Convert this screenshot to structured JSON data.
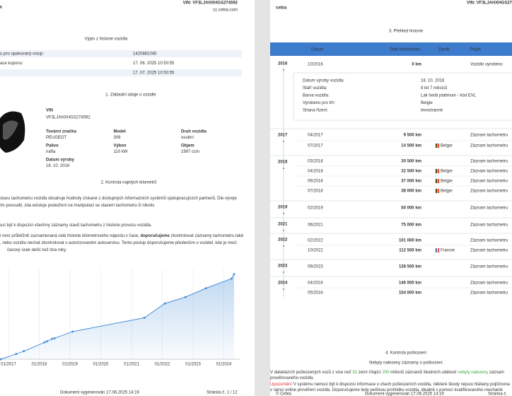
{
  "left_page": {
    "header": {
      "vin": "VIN: VF3LJAHXHGS274592",
      "website": "cz.cebia.com",
      "logo": "bia"
    },
    "title": "Výpis z historie vozidla",
    "summary_rows": [
      {
        "label": "u pro opakovaný vstup:",
        "value": "1420881045"
      },
      {
        "label": "ace kuponu:",
        "value": "17. 06. 2025 10:50:55"
      },
      {
        "value": "17. 07. 2025 10:50:55"
      }
    ],
    "section1": {
      "title": "1. Základní údaje o vozidle",
      "vin_label": "VIN",
      "vin": "VF3LJAHXHGS274592",
      "fields": [
        {
          "label": "Tovární značka",
          "value": "PEUGEOT"
        },
        {
          "label": "Model",
          "value": "308"
        },
        {
          "label": "Druh vozidla",
          "value": "osobní"
        },
        {
          "label": "Palivo",
          "value": "nafta"
        },
        {
          "label": "Výkon",
          "value": "110 kW"
        },
        {
          "label": "Objem",
          "value": "1997 ccm"
        },
        {
          "label": "Datum výroby",
          "value": "18. 10. 2016"
        }
      ]
    },
    "section2": {
      "title": "2. Kontrola najetých kilometrů",
      "lines": [
        [
          {
            "text": "stavu tachometru vozidla obsahuje hodnoty získané z dostupných informačních systémů spolupracujících partnerů. Dle vývoje"
          }
        ],
        [
          {
            "text": "ím posoudit, zda existuje podezření na manipulaci se stavem tachometru či nikoliv."
          }
        ],
        [
          {
            "text": "usí být k dispozici všechny záznamy stavů tachometru z historie provozu vozidla."
          }
        ],
        [
          {
            "text": "i není průběžně zaznamenaná celá historie kilometrového nájezdu v čase, "
          },
          {
            "text": "doporučujeme",
            "bold": true
          },
          {
            "text": " zkontrolovat záznamy tachometru také"
          }
        ],
        [
          {
            "text": ", nebo vozidlo nechat zkontrolovat v autorizovaném autoservisu. Tento postup doporučujeme především u vozidel, kde je mezi"
          }
        ],
        [
          {
            "text": "časový úsek delší než dva roky."
          }
        ]
      ]
    },
    "footer": {
      "generated": "Dokument vygenerován 17.06.2025 14:19",
      "page": "Stránka č. 1 / 12"
    }
  },
  "chart_data": {
    "type": "line",
    "x": [
      "10/2016",
      "04/2017",
      "07/2017",
      "03/2018",
      "04/2018",
      "06/2018",
      "07/2018",
      "02/2019",
      "06/2021",
      "02/2022",
      "10/2022",
      "06/2023",
      "04/2024",
      "05/2024"
    ],
    "values": [
      0,
      9500,
      14500,
      30500,
      32500,
      37000,
      38000,
      50000,
      75000,
      101000,
      112500,
      128500,
      146000,
      154000
    ],
    "xticks": [
      "01/2017",
      "01/2018",
      "01/2019",
      "01/2020",
      "01/2021",
      "01/2022",
      "01/2023",
      "01/2024"
    ],
    "ylim": [
      0,
      160000
    ],
    "color": "#4a8fd8"
  },
  "right_page": {
    "header": {
      "logo": "cebia",
      "vin": "VIN: VF3LJAHXHGS27"
    },
    "title": "3. Přehled historie",
    "columns": [
      "Datum",
      "Stav tachometru",
      "Země",
      "Popis"
    ],
    "groups": [
      {
        "year": "2016",
        "rows": [
          {
            "date": "10/2016",
            "odometer": "0 km",
            "description": "Vozidlo vyrobeno"
          }
        ],
        "details": [
          {
            "label": "Datum výroby vozidla:",
            "value": "18. 10. 2016"
          },
          {
            "label": "Stáří vozidla:",
            "value": "8 let 7 měsíců"
          },
          {
            "label": "Barva vozidla:",
            "value": "Lak šedá platinium - kód EVL"
          },
          {
            "label": "Vyrobeno pro trh:",
            "value": "Belgie"
          },
          {
            "label": "Strana řízení:",
            "value": "levostranné"
          }
        ]
      },
      {
        "year": "2017",
        "rows": [
          {
            "date": "04/2017",
            "odometer": "9 500 km",
            "description": "Záznam tachometru"
          },
          {
            "date": "07/2017",
            "odometer": "14 500 km",
            "country": "Belgie",
            "flag_colors": [
              "#111111",
              "#f4d000",
              "#e0302c"
            ],
            "description": "Záznam tachometru"
          }
        ]
      },
      {
        "year": "2018",
        "rows": [
          {
            "date": "03/2018",
            "odometer": "30 500 km",
            "description": "Záznam tachometru"
          },
          {
            "date": "04/2018",
            "odometer": "32 500 km",
            "country": "Belgie",
            "flag_colors": [
              "#111111",
              "#f4d000",
              "#e0302c"
            ],
            "description": "Záznam tachometru"
          },
          {
            "date": "06/2018",
            "odometer": "37 000 km",
            "country": "Belgie",
            "flag_colors": [
              "#111111",
              "#f4d000",
              "#e0302c"
            ],
            "description": "Záznam tachometru"
          },
          {
            "date": "07/2018",
            "odometer": "38 000 km",
            "country": "Belgie",
            "flag_colors": [
              "#111111",
              "#f4d000",
              "#e0302c"
            ],
            "description": "Záznam tachometru"
          }
        ]
      },
      {
        "year": "2019",
        "rows": [
          {
            "date": "02/2019",
            "odometer": "50 000 km",
            "description": "Záznam tachometru"
          }
        ]
      },
      {
        "year": "2021",
        "rows": [
          {
            "date": "06/2021",
            "odometer": "75 000 km",
            "description": "Záznam tachometru"
          }
        ]
      },
      {
        "year": "2022",
        "rows": [
          {
            "date": "02/2022",
            "odometer": "101 000 km",
            "description": "Záznam tachometru"
          },
          {
            "date": "10/2022",
            "odometer": "112 500 km",
            "country": "Francie",
            "flag_colors": [
              "#1f3f99",
              "#ffffff",
              "#e0302c"
            ],
            "description": "Záznam tachometru"
          }
        ]
      },
      {
        "year": "2023",
        "rows": [
          {
            "date": "06/2023",
            "odometer": "128 500 km",
            "description": "Záznam tachometru"
          }
        ]
      },
      {
        "year": "2024",
        "rows": [
          {
            "date": "04/2024",
            "odometer": "146 000 km",
            "description": "Záznam tachometru"
          },
          {
            "date": "05/2024",
            "odometer": "154 000 km",
            "description": "Záznam tachometru"
          }
        ]
      }
    ],
    "section4": {
      "title": "4. Kontrola poškození",
      "result": "Nebyly nalezeny záznamy o poškození",
      "lines": [
        [
          {
            "text": "V databázích poškozených vozů z více než "
          },
          {
            "text": "32",
            "color": "#3aa935"
          },
          {
            "text": " zemí čítající "
          },
          {
            "text": "200",
            "color": "#3aa935"
          },
          {
            "text": " milionů záznamů škodních událostí "
          },
          {
            "text": "nebyly nalezeny",
            "color": "#3aa935"
          },
          {
            "text": " záznam"
          }
        ],
        [
          {
            "text": "prověřovaného vozidla."
          }
        ],
        [
          {
            "text": "Upozornění",
            "color": "#e0302c"
          },
          {
            "text": " V systému nemusí být k dispozici informace o všech poškozeních vozidla, některé škody nejsou hlášeny pojišťovna"
          }
        ],
        [
          {
            "text": "v rámci online prověření vozidla. Doporučujeme tedy pečlivou prohlídku vozidla, ideálně s pomocí kvalifikovaného mechanik"
          }
        ]
      ]
    },
    "footer": {
      "copyright": "© Cebia",
      "generated": "Dokument vygenerován 17.06.2025 14:19",
      "page": "Stránka č."
    }
  }
}
